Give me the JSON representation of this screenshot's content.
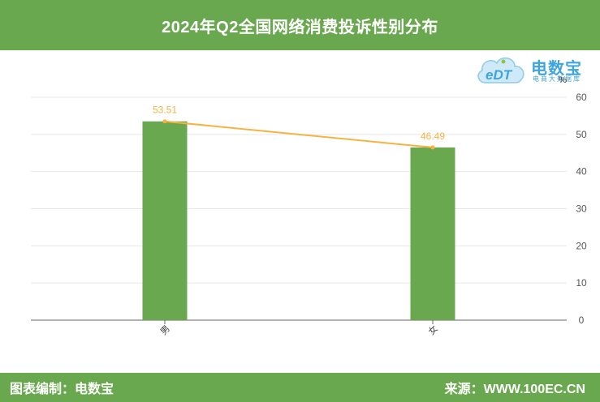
{
  "header": {
    "title": "2024年Q2全国网络消费投诉性别分布"
  },
  "logo": {
    "name": "电数宝",
    "subtitle": "电商大数据库",
    "icon_text": "eDT"
  },
  "footer": {
    "left": "图表编制：电数宝",
    "right": "来源：WWW.100EC.CN"
  },
  "colors": {
    "bar": "#6aa84f",
    "line": "#f5b342",
    "header_bg": "#6aa84f",
    "logo": "#3ea4dc"
  },
  "chart_data": {
    "type": "bar",
    "categories": [
      "男",
      "女"
    ],
    "values": [
      53.51,
      46.49
    ],
    "line_values": [
      53.51,
      46.49
    ],
    "y_unit": "%",
    "ylim": [
      0,
      60
    ],
    "yticks": [
      0,
      10,
      20,
      30,
      40,
      50,
      60
    ],
    "y_axis_side": "right",
    "grid": true
  }
}
